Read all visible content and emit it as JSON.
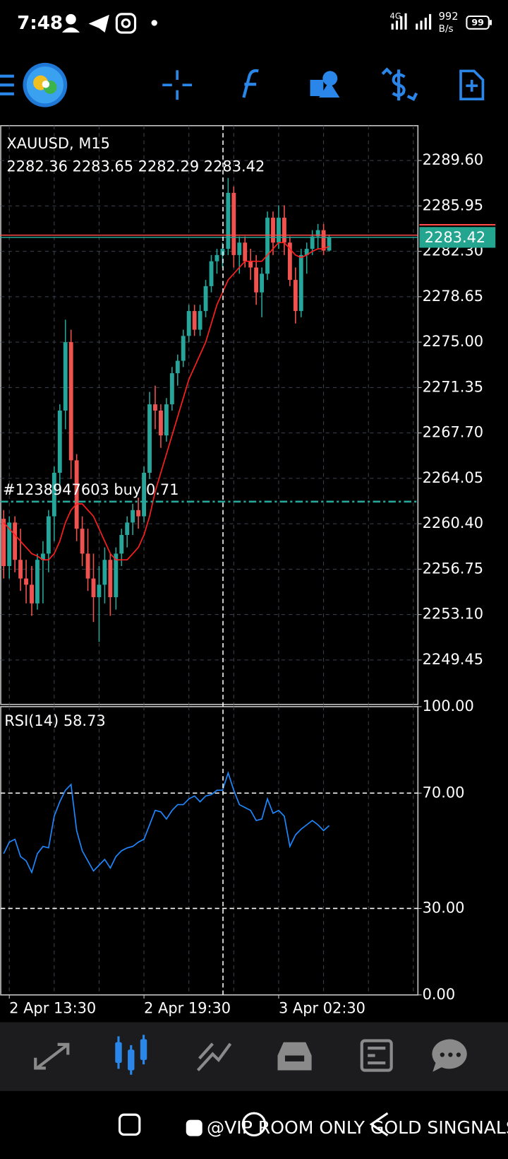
{
  "status_bar": {
    "time": "7:48",
    "network": "4G",
    "speed": "992",
    "speed_unit": "B/s",
    "battery": "99"
  },
  "chart_data": [
    {
      "type": "candlestick",
      "title": "XAUUSD, M15",
      "subtitle": "2282.36 2283.65 2282.29 2283.42",
      "categories": [
        null,
        "2 Apr 13:30",
        null,
        null,
        null,
        null,
        null,
        null,
        null,
        null,
        null,
        null,
        null,
        null,
        null,
        null,
        null,
        null,
        null,
        null,
        null,
        null,
        null,
        null,
        null,
        "2 Apr 19:30",
        null,
        null,
        null,
        null,
        null,
        null,
        null,
        null,
        null,
        null,
        null,
        null,
        null,
        null,
        null,
        null,
        null,
        null,
        null,
        null,
        null,
        null,
        null,
        "3 Apr 02:30",
        null,
        null,
        null,
        null,
        null,
        null,
        null,
        null,
        null
      ],
      "open": [
        2260.8,
        2257,
        2260.5,
        2257.5,
        2256,
        2255.5,
        2254,
        2257.5,
        2258,
        2261,
        2264.5,
        2269.5,
        2275,
        2265.5,
        2260,
        2258,
        2256,
        2254.5,
        2255.5,
        2257.5,
        2254.5,
        2258,
        2259.5,
        2260.5,
        2261.5,
        2261,
        2264.5,
        2270,
        2269.5,
        2267.5,
        2270,
        2272.5,
        2273.5,
        2275.5,
        2277.5,
        2276,
        2277.5,
        2279.5,
        2281.5,
        2282,
        2282.5,
        2287,
        2282,
        2283,
        2281.5,
        2281,
        2279,
        2280.5,
        2285,
        2283,
        2285,
        2283,
        2280,
        2277.5,
        2282,
        2282.5,
        2283.5,
        2284,
        2282.36
      ],
      "high": [
        2261.5,
        2261,
        2261,
        2260,
        2257.5,
        2257,
        2258,
        2259,
        2261.5,
        2265,
        2270,
        2276.8,
        2276,
        2266,
        2261,
        2260,
        2258,
        2257,
        2258.5,
        2258,
        2258.5,
        2260,
        2261,
        2262,
        2262.5,
        2265,
        2271,
        2271.5,
        2270,
        2270.5,
        2273,
        2274,
        2276,
        2278,
        2278,
        2278,
        2280,
        2282,
        2282.5,
        2283,
        2288.2,
        2287.5,
        2283.5,
        2283.5,
        2282.5,
        2282,
        2281,
        2285.5,
        2285.5,
        2286,
        2286,
        2283.5,
        2281,
        2282.5,
        2283,
        2284,
        2284.5,
        2284.5,
        2283.65
      ],
      "low": [
        2256,
        2256,
        2256.5,
        2255,
        2254,
        2253,
        2253.5,
        2254,
        2256.5,
        2259,
        2263,
        2268,
        2264,
        2259,
        2257,
        2255,
        2252.5,
        2250.9,
        2254,
        2253,
        2253.5,
        2257,
        2258.5,
        2259.5,
        2260,
        2260.5,
        2264,
        2268,
        2266.5,
        2267,
        2269.5,
        2271.5,
        2273,
        2275,
        2275.5,
        2275.5,
        2277,
        2279,
        2280.5,
        2281,
        2282,
        2281,
        2280.5,
        2281,
        2280,
        2278,
        2277,
        2280,
        2282,
        2282.5,
        2282,
        2279.5,
        2276.5,
        2277,
        2280.5,
        2282,
        2282.5,
        2282,
        2282.29
      ],
      "close": [
        2257,
        2260.5,
        2257.5,
        2256,
        2255.5,
        2254,
        2257.5,
        2258,
        2261,
        2264.5,
        2269.5,
        2275,
        2265.5,
        2260,
        2258,
        2256,
        2254.5,
        2255.5,
        2257.5,
        2254.5,
        2258,
        2259.5,
        2260.5,
        2261.5,
        2261,
        2264.5,
        2270,
        2269.5,
        2267.5,
        2270,
        2272.5,
        2273.5,
        2275.5,
        2277.5,
        2276,
        2277.5,
        2279.5,
        2281.5,
        2282,
        2282.5,
        2287,
        2282,
        2283,
        2281.5,
        2281,
        2279,
        2280.5,
        2285,
        2283,
        2285,
        2283,
        2280,
        2277.5,
        2282,
        2282.5,
        2283.5,
        2284,
        2282.36,
        2283.42
      ],
      "up_color": "#26a69a",
      "down_color": "#ef5350",
      "ma": {
        "color": "#ff1f1f",
        "values": [
          2260.5,
          2260,
          2259.5,
          2259,
          2258.5,
          2258,
          2257.8,
          2257.5,
          2257.5,
          2258,
          2259,
          2260.5,
          2261.5,
          2262,
          2262,
          2261.5,
          2261,
          2260,
          2259,
          2258,
          2257.5,
          2257.5,
          2257.5,
          2258,
          2258.5,
          2259.5,
          2261,
          2263,
          2264.5,
          2266,
          2267.5,
          2269,
          2270.5,
          2272,
          2273,
          2274,
          2275,
          2276.5,
          2278,
          2279,
          2280,
          2280.5,
          2281,
          2281.5,
          2281.5,
          2281.5,
          2281.5,
          2282,
          2282.5,
          2283,
          2283,
          2282.5,
          2282,
          2281.8,
          2282,
          2282.3,
          2282.5,
          2282.5,
          2282.7
        ]
      },
      "last": 2283.42,
      "ask": 2283.6,
      "order": {
        "label": "#1238947603 buy 0.71",
        "value": 2262.18
      },
      "ylim": [
        2245.88,
        2292.4
      ],
      "yticks": [
        {
          "value": 2289.6,
          "label": "2289.60"
        },
        {
          "value": 2285.95,
          "label": "2285.95"
        },
        {
          "value": 2282.3,
          "label": "2282.30"
        },
        {
          "value": 2278.65,
          "label": "2278.65"
        },
        {
          "value": 2275,
          "label": "2275.00"
        },
        {
          "value": 2271.35,
          "label": "2271.35"
        },
        {
          "value": 2267.7,
          "label": "2267.70"
        },
        {
          "value": 2264.05,
          "label": "2264.05"
        },
        {
          "value": 2260.4,
          "label": "2260.40"
        },
        {
          "value": 2256.75,
          "label": "2256.75"
        },
        {
          "value": 2253.1,
          "label": "2253.10"
        },
        {
          "value": 2249.45,
          "label": "2249.45"
        }
      ],
      "grid": true
    },
    {
      "type": "line",
      "title": "RSI(14) 58.73",
      "color": "#1e88ff",
      "values": [
        49,
        53,
        54,
        48,
        46.5,
        42.5,
        49,
        51.5,
        51,
        62,
        67,
        71,
        73,
        57,
        50,
        46.5,
        43,
        45,
        47,
        44,
        48,
        50,
        51,
        51.5,
        53,
        54,
        59,
        64,
        63.5,
        61,
        64,
        66,
        66,
        68,
        69,
        67,
        69,
        69.5,
        71,
        71,
        77,
        71,
        66,
        65,
        64,
        60.5,
        61,
        68,
        63,
        64,
        62,
        51.5,
        55.5,
        57.5,
        59,
        60.5,
        59,
        57,
        58.73
      ],
      "ylim": [
        0,
        100
      ],
      "yticks": [
        {
          "value": 100,
          "label": "100.00"
        },
        {
          "value": 70,
          "label": "70.00"
        },
        {
          "value": 30,
          "label": "30.00"
        },
        {
          "value": 0,
          "label": "0.00"
        }
      ],
      "levels": [
        30,
        70
      ],
      "grid": true
    }
  ],
  "watermark": "@VIP ROOM ONLY GOLD SINGNALS"
}
